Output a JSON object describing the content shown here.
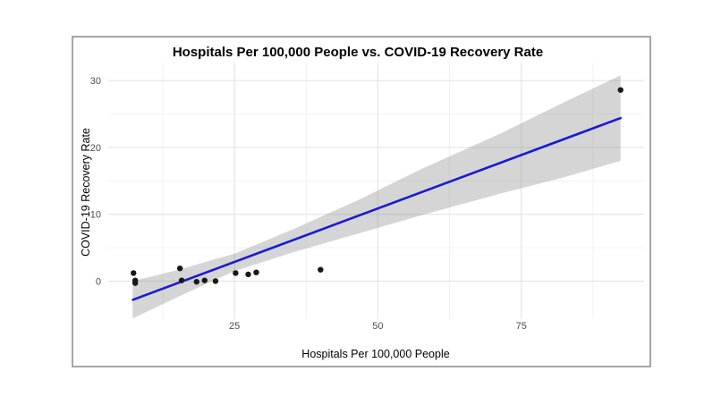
{
  "figure": {
    "title": "Hospitals Per 100,000 People vs. COVID-19 Recovery Rate"
  },
  "chart_data": {
    "type": "scatter",
    "title": "Hospitals Per 100,000 People vs. COVID-19 Recovery Rate",
    "xlabel": "Hospitals Per 100,000 People",
    "ylabel": "COVID-19 Recovery Rate",
    "x_ticks": [
      25,
      50,
      75
    ],
    "y_ticks": [
      0,
      10,
      20,
      30
    ],
    "x_minor_gridlines": [
      12.5,
      37.5,
      62.5,
      87.5
    ],
    "y_minor_gridlines": [
      5,
      15,
      25
    ],
    "xlim": [
      3.0,
      96.4
    ],
    "ylim": [
      -5.7,
      32.7
    ],
    "grid": true,
    "legend": false,
    "points": [
      [
        7.4,
        1.2
      ],
      [
        7.7,
        0.1
      ],
      [
        7.7,
        -0.3
      ],
      [
        15.5,
        1.9
      ],
      [
        15.8,
        0.1
      ],
      [
        18.4,
        -0.1
      ],
      [
        19.8,
        0.1
      ],
      [
        21.7,
        0.0
      ],
      [
        25.2,
        1.2
      ],
      [
        27.4,
        1.0
      ],
      [
        28.8,
        1.3
      ],
      [
        40.0,
        1.7
      ],
      [
        92.3,
        28.6
      ]
    ],
    "trend_line": {
      "description": "linear regression fit",
      "x": [
        7.3,
        92.3
      ],
      "y": [
        -2.8,
        24.4
      ],
      "color": "#1A1AD2"
    },
    "confidence_band": {
      "description": "95% confidence interval around linear fit",
      "x": [
        7.25,
        15.3,
        25.0,
        35.6,
        46.5,
        57.4,
        71.4,
        82.3,
        92.3
      ],
      "upper": [
        0.0,
        1.7,
        4.1,
        7.9,
        12.1,
        16.7,
        22.1,
        26.7,
        30.8
      ],
      "lower": [
        -5.6,
        -2.3,
        1.5,
        4.4,
        7.1,
        9.8,
        13.1,
        15.5,
        18.0
      ],
      "fill_color": "#7d7d7d",
      "opacity": 0.32
    },
    "colors": {
      "point": "#181818",
      "major_grid": "#e3e3e3",
      "minor_grid": "#f0f0f0",
      "border": "#909090",
      "background": "#ffffff"
    }
  }
}
